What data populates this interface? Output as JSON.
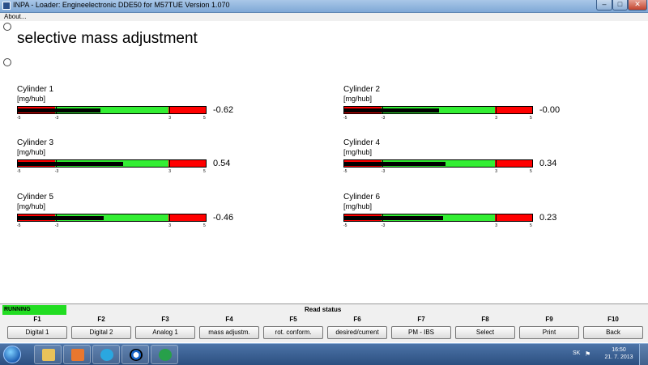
{
  "window": {
    "title": "INPA - Loader:  Engineelectronic DDE50 for M57TUE Version 1.070"
  },
  "menu": {
    "about": "About..."
  },
  "page": {
    "title": "selective mass adjustment"
  },
  "gauge_scale": {
    "min": -5,
    "max": 5,
    "lower": -3,
    "upper": 3,
    "tick_labels": [
      "-5",
      "-3",
      "3",
      "5"
    ]
  },
  "cylinders": [
    {
      "name": "Cylinder 1",
      "unit": "[mg/hub]",
      "value": "-0.62",
      "number": -0.62
    },
    {
      "name": "Cylinder 2",
      "unit": "[mg/hub]",
      "value": "-0.00",
      "number": 0.0
    },
    {
      "name": "Cylinder 3",
      "unit": "[mg/hub]",
      "value": "0.54",
      "number": 0.54
    },
    {
      "name": "Cylinder 4",
      "unit": "[mg/hub]",
      "value": "0.34",
      "number": 0.34
    },
    {
      "name": "Cylinder 5",
      "unit": "[mg/hub]",
      "value": "-0.46",
      "number": -0.46
    },
    {
      "name": "Cylinder 6",
      "unit": "[mg/hub]",
      "value": "0.23",
      "number": 0.23
    }
  ],
  "status": {
    "running": "RUNNING",
    "read_status": "Read status"
  },
  "fkeys": [
    {
      "key": "F1",
      "label": "Digital 1"
    },
    {
      "key": "F2",
      "label": "Digital 2"
    },
    {
      "key": "F3",
      "label": "Analog 1"
    },
    {
      "key": "F4",
      "label": "mass adjustm."
    },
    {
      "key": "F5",
      "label": "rot. conform."
    },
    {
      "key": "F6",
      "label": "desired/current"
    },
    {
      "key": "F7",
      "label": "PM - IBS"
    },
    {
      "key": "F8",
      "label": "Select"
    },
    {
      "key": "F9",
      "label": "Print"
    },
    {
      "key": "F10",
      "label": "Back"
    }
  ],
  "taskbar": {
    "language": "SK",
    "time": "16:50",
    "date": "21. 7. 2013"
  },
  "colors": {
    "running": "#22dd22",
    "gauge_green": "#33ee33",
    "gauge_red": "#ff0000",
    "gauge_fill": "#000000"
  },
  "icons": {
    "start": "windows-start-icon",
    "apps": [
      "explorer-icon",
      "media-player-icon",
      "skype-icon",
      "bmw-icon",
      "inpa-icon"
    ]
  }
}
